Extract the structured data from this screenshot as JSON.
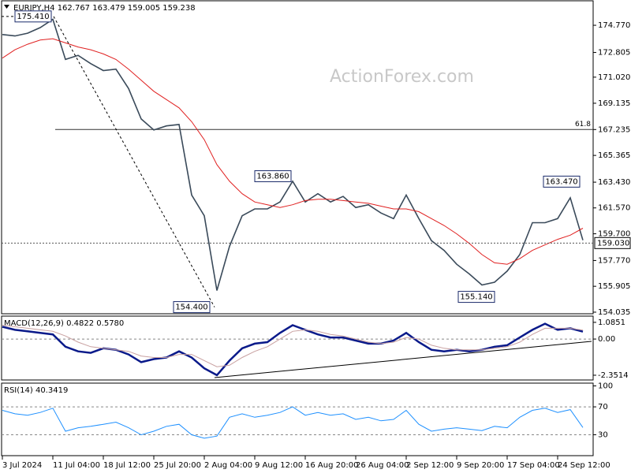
{
  "chart_data": [
    {
      "type": "line",
      "title": "EURJPY,H4 162.767 163.479 159.005 159.238",
      "watermark": "ActionForex.com",
      "ylim": [
        153.92,
        176.54
      ],
      "yticks": [
        {
          "value": 174.77,
          "label": "174.770"
        },
        172.805,
        {
          "value": 171.02,
          "label": "171.020"
        },
        169.135,
        167.235,
        165.365,
        {
          "value": 163.43,
          "label": "163.430"
        },
        {
          "value": 161.57,
          "label": "161.570"
        },
        {
          "value": 159.7,
          "label": "159.700"
        },
        {
          "value": 157.77,
          "label": "157.770"
        },
        155.905,
        154.035
      ],
      "series": [
        {
          "color": "#3a4a5a",
          "values": [
            174.1,
            174.0,
            174.2,
            174.6,
            175.2,
            172.3,
            172.6,
            172.0,
            171.5,
            171.6,
            170.2,
            168.0,
            167.2,
            167.5,
            167.6,
            162.5,
            161.0,
            155.6,
            158.8,
            161.0,
            161.5,
            161.5,
            162.0,
            163.5,
            162.0,
            162.6,
            162.0,
            162.4,
            161.6,
            161.8,
            161.2,
            160.8,
            162.5,
            160.8,
            159.2,
            158.5,
            157.5,
            156.8,
            156.0,
            156.2,
            157.0,
            158.2,
            160.5,
            160.5,
            160.8,
            162.3,
            159.238
          ]
        },
        {
          "color": "#e02020",
          "values": [
            172.4,
            173.0,
            173.4,
            173.7,
            173.8,
            173.5,
            173.2,
            173.0,
            172.7,
            172.3,
            171.6,
            170.8,
            170.0,
            169.4,
            168.8,
            167.8,
            166.5,
            164.7,
            163.5,
            162.6,
            162.0,
            161.8,
            161.6,
            161.8,
            162.1,
            162.2,
            162.2,
            162.1,
            162.0,
            161.9,
            161.7,
            161.5,
            161.5,
            161.3,
            160.8,
            160.3,
            159.7,
            159.0,
            158.2,
            157.6,
            157.5,
            157.9,
            158.5,
            158.9,
            159.3,
            159.6,
            160.1
          ]
        }
      ],
      "annotations": {
        "values": [
          175.41,
          163.86,
          154.4,
          155.14,
          163.47
        ],
        "value_labels": [
          "175.410",
          "163.860",
          "154.400",
          "155.140",
          "163.470"
        ]
      },
      "levels": [
        {
          "value": 167.235,
          "label": "61.8"
        }
      ],
      "last_price": {
        "value": 159.03,
        "label": "159.030"
      }
    },
    {
      "type": "line",
      "title": "MACD(12,26,9) 0.4822 0.5780",
      "ylim": [
        -2.66,
        1.49
      ],
      "yticks": [
        1.0851,
        {
          "value": 0,
          "label": "0.00"
        },
        -2.3514
      ],
      "levels": [
        0
      ],
      "series": [
        {
          "color": "#0a1a8a",
          "values": [
            0.8,
            0.6,
            0.5,
            0.4,
            0.3,
            -0.5,
            -0.8,
            -0.9,
            -0.6,
            -0.7,
            -1.0,
            -1.5,
            -1.3,
            -1.2,
            -0.8,
            -1.2,
            -1.9,
            -2.35,
            -1.4,
            -0.6,
            -0.3,
            -0.2,
            0.4,
            0.9,
            0.6,
            0.3,
            0.1,
            0.1,
            -0.1,
            -0.3,
            -0.3,
            -0.1,
            0.4,
            -0.2,
            -0.7,
            -0.8,
            -0.7,
            -0.8,
            -0.7,
            -0.5,
            -0.4,
            0.1,
            0.6,
            1.0,
            0.6,
            0.7,
            0.4822
          ]
        },
        {
          "color": "#c8a0a0",
          "values": [
            0.9,
            0.8,
            0.7,
            0.6,
            0.5,
            0.2,
            -0.2,
            -0.5,
            -0.6,
            -0.7,
            -0.8,
            -1.1,
            -1.2,
            -1.2,
            -1.0,
            -1.0,
            -1.4,
            -1.8,
            -1.7,
            -1.2,
            -0.8,
            -0.5,
            0,
            0.5,
            0.6,
            0.5,
            0.3,
            0.2,
            0.0,
            -0.2,
            -0.3,
            -0.2,
            0.1,
            0.0,
            -0.4,
            -0.6,
            -0.7,
            -0.7,
            -0.7,
            -0.6,
            -0.5,
            -0.2,
            0.3,
            0.7,
            0.7,
            0.7,
            0.578
          ]
        }
      ]
    },
    {
      "type": "line",
      "title": "RSI(14) 40.3419",
      "ylim": [
        0,
        104
      ],
      "yticks": [
        100,
        70,
        30
      ],
      "levels": [
        70,
        30
      ],
      "categories": [
        "3 Jul 2024",
        null,
        null,
        null,
        "11 Jul 04:00",
        null,
        null,
        null,
        "18 Jul 12:00",
        null,
        null,
        null,
        "25 Jul 20:00",
        null,
        null,
        null,
        "2 Aug 04:00",
        null,
        null,
        null,
        "9 Aug 12:00",
        null,
        null,
        null,
        "16 Aug 20:00",
        null,
        null,
        null,
        "26 Aug 04:00",
        null,
        null,
        null,
        "2 Sep 12:00",
        null,
        null,
        null,
        "9 Sep 20:00",
        null,
        null,
        null,
        "17 Sep 04:00",
        null,
        null,
        null,
        "24 Sep 12:00",
        null,
        null
      ],
      "series": [
        {
          "color": "#1e90ff",
          "values": [
            65,
            60,
            58,
            62,
            68,
            35,
            40,
            42,
            45,
            48,
            40,
            30,
            35,
            42,
            45,
            30,
            25,
            28,
            55,
            60,
            55,
            58,
            62,
            70,
            58,
            62,
            58,
            60,
            52,
            55,
            50,
            52,
            65,
            45,
            35,
            38,
            40,
            38,
            36,
            42,
            40,
            55,
            65,
            68,
            62,
            66,
            40.3419
          ]
        }
      ]
    }
  ]
}
